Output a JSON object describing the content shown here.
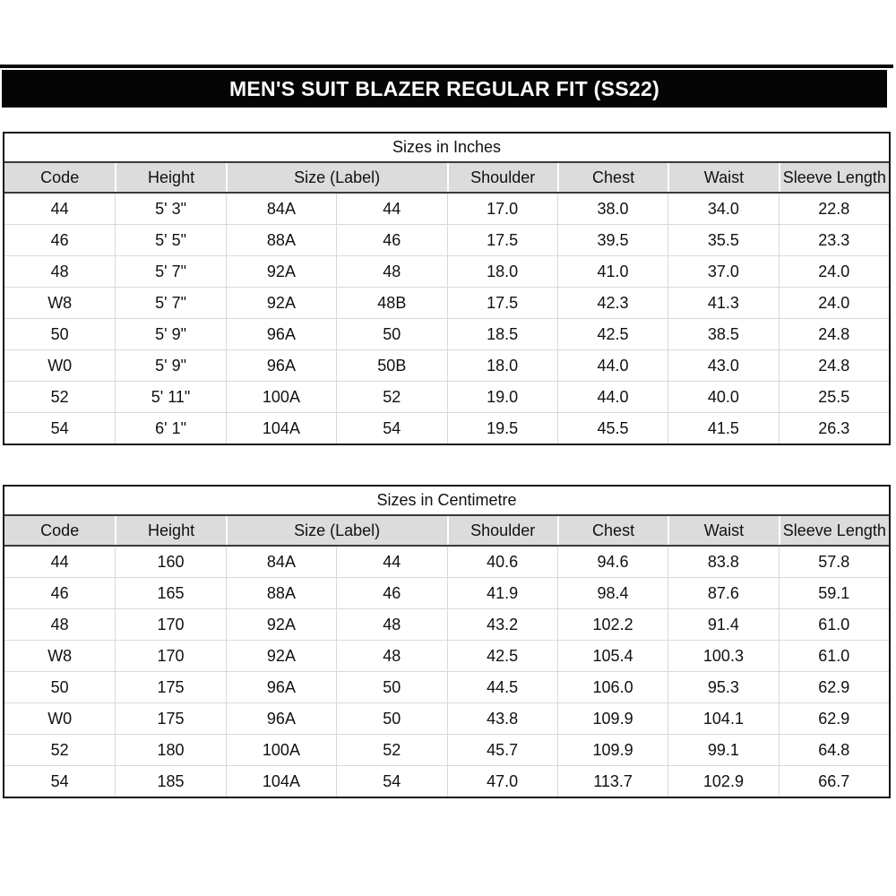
{
  "page_title": "MEN'S SUIT BLAZER REGULAR FIT (SS22)",
  "colors": {
    "band_bg": "#050505",
    "band_text": "#ffffff",
    "header_bg": "#dcdcdc",
    "grid_line": "#d9d9d9",
    "divider_dark": "#3a3a3a",
    "outer_border": "#161616",
    "text": "#111111"
  },
  "chart_data": [
    {
      "type": "table",
      "title": "Sizes in Inches",
      "columns": [
        "Code",
        "Height",
        "Size (Label)",
        "Shoulder",
        "Chest",
        "Waist",
        "Sleeve Length"
      ],
      "size_label_spans_two_subcolumns": true,
      "rows": [
        [
          "44",
          "5' 3\"",
          "84A",
          "44",
          "17.0",
          "38.0",
          "34.0",
          "22.8"
        ],
        [
          "46",
          "5' 5\"",
          "88A",
          "46",
          "17.5",
          "39.5",
          "35.5",
          "23.3"
        ],
        [
          "48",
          "5' 7\"",
          "92A",
          "48",
          "18.0",
          "41.0",
          "37.0",
          "24.0"
        ],
        [
          "W8",
          "5' 7\"",
          "92A",
          "48B",
          "17.5",
          "42.3",
          "41.3",
          "24.0"
        ],
        [
          "50",
          "5' 9\"",
          "96A",
          "50",
          "18.5",
          "42.5",
          "38.5",
          "24.8"
        ],
        [
          "W0",
          "5' 9\"",
          "96A",
          "50B",
          "18.0",
          "44.0",
          "43.0",
          "24.8"
        ],
        [
          "52",
          "5' 11\"",
          "100A",
          "52",
          "19.0",
          "44.0",
          "40.0",
          "25.5"
        ],
        [
          "54",
          "6' 1\"",
          "104A",
          "54",
          "19.5",
          "45.5",
          "41.5",
          "26.3"
        ]
      ]
    },
    {
      "type": "table",
      "title": "Sizes in Centimetre",
      "columns": [
        "Code",
        "Height",
        "Size (Label)",
        "Shoulder",
        "Chest",
        "Waist",
        "Sleeve Length"
      ],
      "size_label_spans_two_subcolumns": true,
      "rows": [
        [
          "44",
          "160",
          "84A",
          "44",
          "40.6",
          "94.6",
          "83.8",
          "57.8"
        ],
        [
          "46",
          "165",
          "88A",
          "46",
          "41.9",
          "98.4",
          "87.6",
          "59.1"
        ],
        [
          "48",
          "170",
          "92A",
          "48",
          "43.2",
          "102.2",
          "91.4",
          "61.0"
        ],
        [
          "W8",
          "170",
          "92A",
          "48",
          "42.5",
          "105.4",
          "100.3",
          "61.0"
        ],
        [
          "50",
          "175",
          "96A",
          "50",
          "44.5",
          "106.0",
          "95.3",
          "62.9"
        ],
        [
          "W0",
          "175",
          "96A",
          "50",
          "43.8",
          "109.9",
          "104.1",
          "62.9"
        ],
        [
          "52",
          "180",
          "100A",
          "52",
          "45.7",
          "109.9",
          "99.1",
          "64.8"
        ],
        [
          "54",
          "185",
          "104A",
          "54",
          "47.0",
          "113.7",
          "102.9",
          "66.7"
        ]
      ]
    }
  ]
}
